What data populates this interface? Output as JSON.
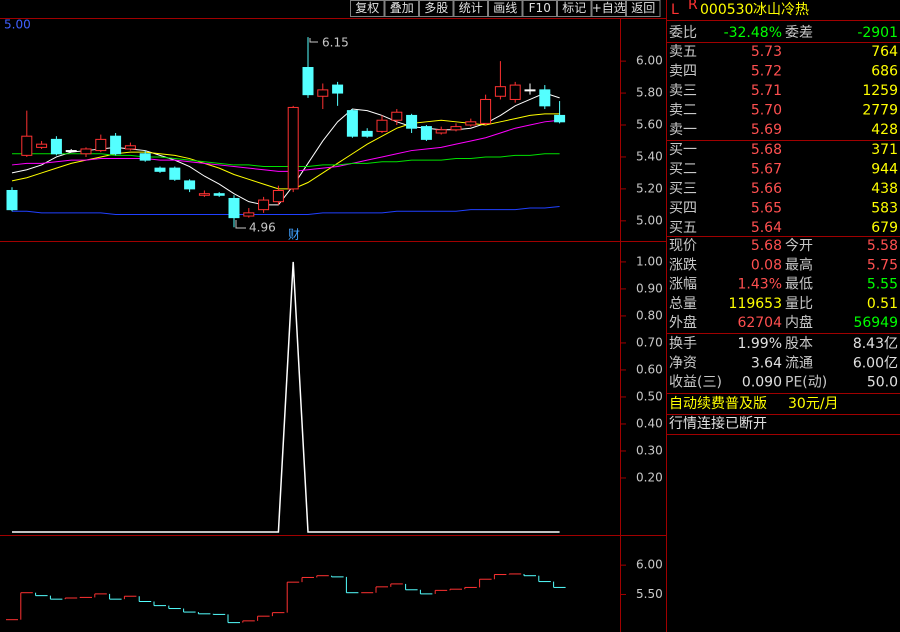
{
  "toolbar": [
    "复权",
    "叠加",
    "多股",
    "统计",
    "画线",
    "F10",
    "标记",
    "+自选",
    "返回"
  ],
  "corner_label": "5.00",
  "annotations": [
    "6.15",
    "4.96",
    "财"
  ],
  "chart_data": [
    {
      "type": "candlestick",
      "ylim": [
        4.88,
        6.27
      ],
      "yticks": [
        {
          "value": 6,
          "label": "6.00"
        },
        {
          "value": 5.8,
          "label": "5.80"
        },
        {
          "value": 5.6,
          "label": "5.60"
        },
        {
          "value": 5.4,
          "label": "5.40"
        },
        {
          "value": 5.2,
          "label": "5.20"
        },
        {
          "value": 5,
          "label": "5.00"
        }
      ],
      "up_color": "#ff3232",
      "down_color": "#54ffff",
      "flat_color": "#ffffff",
      "open": [
        5.19,
        5.41,
        5.46,
        5.51,
        5.44,
        5.42,
        5.44,
        5.53,
        5.45,
        5.42,
        5.33,
        5.33,
        5.25,
        5.16,
        5.17,
        5.14,
        5.03,
        5.07,
        5.12,
        5.2,
        5.96,
        5.78,
        5.85,
        5.69,
        5.56,
        5.56,
        5.63,
        5.66,
        5.59,
        5.55,
        5.57,
        5.6,
        5.61,
        5.78,
        5.76,
        5.82,
        5.82,
        5.66
      ],
      "high": [
        5.21,
        5.69,
        5.5,
        5.53,
        5.45,
        5.46,
        5.54,
        5.55,
        5.49,
        5.44,
        5.34,
        5.34,
        5.26,
        5.19,
        5.18,
        5.16,
        5.08,
        5.15,
        5.22,
        5.72,
        6.15,
        5.86,
        5.87,
        5.7,
        5.58,
        5.66,
        5.7,
        5.67,
        5.6,
        5.59,
        5.61,
        5.64,
        5.79,
        6.0,
        5.87,
        5.86,
        5.85,
        5.75
      ],
      "low": [
        5.06,
        5.4,
        5.45,
        5.41,
        5.43,
        5.4,
        5.43,
        5.41,
        5.44,
        5.37,
        5.3,
        5.25,
        5.18,
        5.15,
        5.15,
        4.96,
        5.02,
        5.05,
        5.1,
        5.18,
        5.77,
        5.7,
        5.72,
        5.52,
        5.52,
        5.55,
        5.6,
        5.55,
        5.5,
        5.54,
        5.56,
        5.59,
        5.6,
        5.76,
        5.74,
        5.79,
        5.7,
        5.61
      ],
      "close": [
        5.07,
        5.53,
        5.48,
        5.42,
        5.44,
        5.45,
        5.51,
        5.42,
        5.47,
        5.38,
        5.31,
        5.26,
        5.2,
        5.17,
        5.16,
        5.02,
        5.05,
        5.13,
        5.19,
        5.71,
        5.79,
        5.82,
        5.8,
        5.53,
        5.53,
        5.63,
        5.68,
        5.58,
        5.51,
        5.57,
        5.59,
        5.62,
        5.76,
        5.84,
        5.85,
        5.82,
        5.72,
        5.62
      ],
      "series": [
        {
          "color": "#ffffff",
          "values": [
            5.3,
            5.32,
            5.35,
            5.4,
            5.43,
            5.44,
            5.45,
            5.46,
            5.45,
            5.44,
            5.41,
            5.38,
            5.34,
            5.28,
            5.23,
            5.17,
            5.12,
            5.1,
            5.1,
            5.22,
            5.36,
            5.5,
            5.62,
            5.7,
            5.69,
            5.66,
            5.62,
            5.59,
            5.58,
            5.57,
            5.57,
            5.58,
            5.61,
            5.66,
            5.72,
            5.76,
            5.8,
            5.77
          ]
        },
        {
          "color": "#ffff00",
          "values": [
            5.25,
            5.27,
            5.3,
            5.33,
            5.36,
            5.38,
            5.4,
            5.42,
            5.43,
            5.43,
            5.42,
            5.41,
            5.39,
            5.36,
            5.33,
            5.29,
            5.26,
            5.23,
            5.2,
            5.2,
            5.24,
            5.3,
            5.36,
            5.42,
            5.48,
            5.53,
            5.58,
            5.61,
            5.62,
            5.63,
            5.62,
            5.61,
            5.6,
            5.62,
            5.64,
            5.66,
            5.67,
            5.67
          ]
        },
        {
          "color": "#ff00ff",
          "values": [
            5.35,
            5.36,
            5.36,
            5.37,
            5.38,
            5.38,
            5.39,
            5.39,
            5.39,
            5.39,
            5.38,
            5.38,
            5.37,
            5.36,
            5.35,
            5.34,
            5.33,
            5.32,
            5.31,
            5.31,
            5.32,
            5.33,
            5.34,
            5.36,
            5.38,
            5.4,
            5.42,
            5.44,
            5.45,
            5.46,
            5.48,
            5.5,
            5.52,
            5.55,
            5.58,
            5.6,
            5.62,
            5.63
          ]
        },
        {
          "color": "#00e000",
          "values": [
            5.42,
            5.42,
            5.42,
            5.42,
            5.42,
            5.42,
            5.42,
            5.41,
            5.41,
            5.4,
            5.4,
            5.39,
            5.38,
            5.37,
            5.36,
            5.35,
            5.35,
            5.34,
            5.34,
            5.34,
            5.34,
            5.35,
            5.35,
            5.36,
            5.36,
            5.37,
            5.37,
            5.38,
            5.38,
            5.38,
            5.39,
            5.39,
            5.4,
            5.4,
            5.41,
            5.41,
            5.42,
            5.42
          ]
        },
        {
          "color": "#2040ff",
          "values": [
            5.06,
            5.06,
            5.05,
            5.05,
            5.05,
            5.05,
            5.05,
            5.04,
            5.04,
            5.04,
            5.04,
            5.04,
            5.04,
            5.04,
            5.04,
            5.04,
            5.04,
            5.04,
            5.04,
            5.04,
            5.04,
            5.05,
            5.05,
            5.05,
            5.05,
            5.05,
            5.06,
            5.06,
            5.06,
            5.06,
            5.06,
            5.07,
            5.07,
            5.07,
            5.07,
            5.08,
            5.08,
            5.09
          ]
        }
      ]
    },
    {
      "type": "line",
      "color": "#ffffff",
      "ylim": [
        0,
        1.07
      ],
      "yticks": [
        {
          "value": 1,
          "label": "1.00"
        },
        {
          "value": 0.9,
          "label": "0.90"
        },
        {
          "value": 0.8,
          "label": "0.80"
        },
        {
          "value": 0.7,
          "label": "0.70"
        },
        {
          "value": 0.6,
          "label": "0.60"
        },
        {
          "value": 0.5,
          "label": "0.50"
        },
        {
          "value": 0.4,
          "label": "0.40"
        },
        {
          "value": 0.3,
          "label": "0.30"
        },
        {
          "value": 0.2,
          "label": "0.20"
        }
      ],
      "values": [
        0,
        0,
        0,
        0,
        0,
        0,
        0,
        0,
        0,
        0,
        0,
        0,
        0,
        0,
        0,
        0,
        0,
        0,
        0,
        1,
        0,
        0,
        0,
        0,
        0,
        0,
        0,
        0,
        0,
        0,
        0,
        0,
        0,
        0,
        0,
        0,
        0,
        0
      ]
    },
    {
      "type": "tick",
      "up_color": "#ff3232",
      "down_color": "#54ffff",
      "ylim": [
        4.86,
        6.48
      ],
      "yticks": [
        {
          "value": 6,
          "label": "6.00"
        },
        {
          "value": 5.5,
          "label": "5.50"
        }
      ],
      "values": [
        5.07,
        5.53,
        5.48,
        5.42,
        5.44,
        5.45,
        5.51,
        5.42,
        5.47,
        5.38,
        5.31,
        5.26,
        5.2,
        5.17,
        5.16,
        5.02,
        5.05,
        5.13,
        5.19,
        5.71,
        5.79,
        5.82,
        5.8,
        5.53,
        5.53,
        5.63,
        5.68,
        5.58,
        5.51,
        5.57,
        5.59,
        5.62,
        5.76,
        5.84,
        5.85,
        5.82,
        5.72,
        5.62
      ]
    }
  ],
  "quote": {
    "flag": "L",
    "sup": "R",
    "code": "000530",
    "name": "冰山冷热",
    "ratio": {
      "label": "委比",
      "value": "-32.48%",
      "diff_label": "委差",
      "diff": "-2901"
    },
    "asks": [
      {
        "label": "卖五",
        "price": "5.73",
        "volume": "764"
      },
      {
        "label": "卖四",
        "price": "5.72",
        "volume": "686"
      },
      {
        "label": "卖三",
        "price": "5.71",
        "volume": "1259"
      },
      {
        "label": "卖二",
        "price": "5.70",
        "volume": "2779"
      },
      {
        "label": "卖一",
        "price": "5.69",
        "volume": "428"
      }
    ],
    "bids": [
      {
        "label": "买一",
        "price": "5.68",
        "volume": "371"
      },
      {
        "label": "买二",
        "price": "5.67",
        "volume": "944"
      },
      {
        "label": "买三",
        "price": "5.66",
        "volume": "438"
      },
      {
        "label": "买四",
        "price": "5.65",
        "volume": "583"
      },
      {
        "label": "买五",
        "price": "5.64",
        "volume": "679"
      }
    ],
    "stats": [
      {
        "label": "现价",
        "value": "5.68",
        "color": "#ff5050",
        "label2": "今开",
        "value2": "5.58",
        "color2": "#ff5050"
      },
      {
        "label": "涨跌",
        "value": "0.08",
        "color": "#ff5050",
        "label2": "最高",
        "value2": "5.75",
        "color2": "#ff5050"
      },
      {
        "label": "涨幅",
        "value": "1.43%",
        "color": "#ff5050",
        "label2": "最低",
        "value2": "5.55",
        "color2": "#00ff00"
      },
      {
        "label": "总量",
        "value": "119653",
        "color": "#ffff00",
        "label2": "量比",
        "value2": "0.51",
        "color2": "#ffff00"
      },
      {
        "label": "外盘",
        "value": "62704",
        "color": "#ff5050",
        "label2": "内盘",
        "value2": "56949",
        "color2": "#00ff00"
      }
    ],
    "finance": [
      {
        "label": "换手",
        "value": "1.99%",
        "label2": "股本",
        "value2": "8.43亿"
      },
      {
        "label": "净资",
        "value": "3.64",
        "label2": "流通",
        "value2": "6.00亿"
      },
      {
        "label": "收益(三)",
        "value": "0.090",
        "label2": "PE(动)",
        "value2": "50.0"
      }
    ],
    "ad": "自动续费普及版",
    "ad_price": "30元/月",
    "status": "行情连接已断开"
  }
}
